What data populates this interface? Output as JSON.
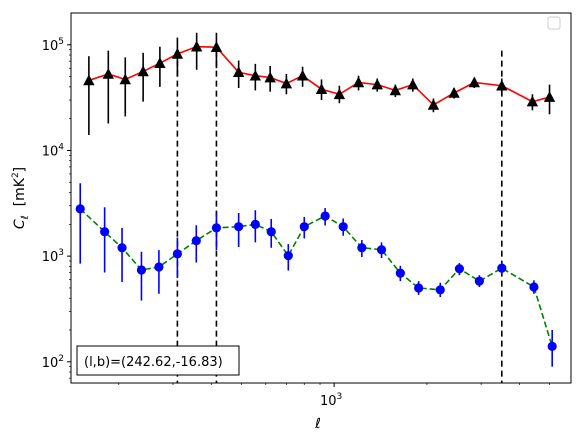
{
  "chart_data": {
    "type": "scatter",
    "xlabel": "ℓ",
    "ylabel_main": "C",
    "ylabel_sub": "ℓ",
    "ylabel_unit": "[mK",
    "ylabel_unit_sup": "2",
    "ylabel_unit_close": "]",
    "xscale": "log",
    "yscale": "log",
    "xlim": [
      140,
      5870
    ],
    "ylim": [
      63,
      200000
    ],
    "grid": false,
    "legend_location": "upper right",
    "annotation": "(l,b)=(242.62,-16.83)",
    "x_ticks": [
      {
        "value": 1000,
        "label_base": "10",
        "label_exp": "3"
      }
    ],
    "y_ticks": [
      {
        "value": 100,
        "label_base": "10",
        "label_exp": "2"
      },
      {
        "value": 1000,
        "label_base": "10",
        "label_exp": "3"
      },
      {
        "value": 10000,
        "label_base": "10",
        "label_exp": "4"
      },
      {
        "value": 100000,
        "label_base": "10",
        "label_exp": "5"
      }
    ],
    "vlines": [
      310,
      415,
      3500
    ],
    "series": [
      {
        "marker": "triangle",
        "marker_color": "#000000",
        "line_color": "#ff0000",
        "line_style": "solid",
        "points": [
          {
            "x": 160,
            "y": 46000,
            "lo": 14000,
            "hi": 78000
          },
          {
            "x": 185,
            "y": 53000,
            "lo": 18000,
            "hi": 88000
          },
          {
            "x": 210,
            "y": 47000,
            "lo": 21000,
            "hi": 76000
          },
          {
            "x": 240,
            "y": 56000,
            "lo": 29000,
            "hi": 84000
          },
          {
            "x": 272,
            "y": 67000,
            "lo": 40000,
            "hi": 96000
          },
          {
            "x": 310,
            "y": 82000,
            "lo": 50000,
            "hi": 117000
          },
          {
            "x": 358,
            "y": 96000,
            "lo": 58000,
            "hi": 130000
          },
          {
            "x": 415,
            "y": 95000,
            "lo": 60000,
            "hi": 130000
          },
          {
            "x": 490,
            "y": 55000,
            "lo": 39000,
            "hi": 71000
          },
          {
            "x": 555,
            "y": 51000,
            "lo": 37000,
            "hi": 66000
          },
          {
            "x": 620,
            "y": 49000,
            "lo": 36000,
            "hi": 63000
          },
          {
            "x": 700,
            "y": 43000,
            "lo": 34000,
            "hi": 53000
          },
          {
            "x": 790,
            "y": 51000,
            "lo": 40000,
            "hi": 62000
          },
          {
            "x": 910,
            "y": 38000,
            "lo": 30000,
            "hi": 47000
          },
          {
            "x": 1040,
            "y": 34000,
            "lo": 28000,
            "hi": 41000
          },
          {
            "x": 1200,
            "y": 44000,
            "lo": 37000,
            "hi": 51000
          },
          {
            "x": 1380,
            "y": 42000,
            "lo": 36000,
            "hi": 48000
          },
          {
            "x": 1580,
            "y": 37000,
            "lo": 32000,
            "hi": 42000
          },
          {
            "x": 1800,
            "y": 42000,
            "lo": 36000,
            "hi": 48000
          },
          {
            "x": 2100,
            "y": 27000,
            "lo": 23000,
            "hi": 31000
          },
          {
            "x": 2450,
            "y": 35000,
            "lo": 31000,
            "hi": 39000
          },
          {
            "x": 2850,
            "y": 44000,
            "lo": 39000,
            "hi": 49000
          },
          {
            "x": 3500,
            "y": 41000,
            "lo": 34000,
            "hi": 48000
          },
          {
            "x": 4400,
            "y": 29000,
            "lo": 24000,
            "hi": 34000
          },
          {
            "x": 5000,
            "y": 32000,
            "lo": 22000,
            "hi": 42000
          }
        ]
      },
      {
        "marker": "circle",
        "marker_color": "#0000ff",
        "line_color": "#008000",
        "line_style": "dashed",
        "points": [
          {
            "x": 150,
            "y": 2800,
            "lo": 850,
            "hi": 4900
          },
          {
            "x": 180,
            "y": 1700,
            "lo": 700,
            "hi": 2900
          },
          {
            "x": 205,
            "y": 1200,
            "lo": 570,
            "hi": 1850
          },
          {
            "x": 237,
            "y": 740,
            "lo": 380,
            "hi": 1100
          },
          {
            "x": 270,
            "y": 790,
            "lo": 440,
            "hi": 1140
          },
          {
            "x": 310,
            "y": 1050,
            "lo": 620,
            "hi": 1500
          },
          {
            "x": 357,
            "y": 1400,
            "lo": 870,
            "hi": 1960
          },
          {
            "x": 415,
            "y": 1850,
            "lo": 1140,
            "hi": 2570
          },
          {
            "x": 490,
            "y": 1900,
            "lo": 1220,
            "hi": 2560
          },
          {
            "x": 555,
            "y": 2000,
            "lo": 1350,
            "hi": 2720
          },
          {
            "x": 625,
            "y": 1700,
            "lo": 1200,
            "hi": 2250
          },
          {
            "x": 710,
            "y": 1010,
            "lo": 730,
            "hi": 1300
          },
          {
            "x": 800,
            "y": 1900,
            "lo": 1470,
            "hi": 2350
          },
          {
            "x": 935,
            "y": 2400,
            "lo": 1950,
            "hi": 2850
          },
          {
            "x": 1070,
            "y": 1900,
            "lo": 1560,
            "hi": 2270
          },
          {
            "x": 1230,
            "y": 1200,
            "lo": 980,
            "hi": 1420
          },
          {
            "x": 1425,
            "y": 1150,
            "lo": 960,
            "hi": 1350
          },
          {
            "x": 1640,
            "y": 690,
            "lo": 580,
            "hi": 810
          },
          {
            "x": 1880,
            "y": 500,
            "lo": 430,
            "hi": 580
          },
          {
            "x": 2210,
            "y": 480,
            "lo": 410,
            "hi": 560
          },
          {
            "x": 2550,
            "y": 760,
            "lo": 660,
            "hi": 860
          },
          {
            "x": 2960,
            "y": 580,
            "lo": 510,
            "hi": 660
          },
          {
            "x": 3500,
            "y": 770,
            "lo": 670,
            "hi": 880
          },
          {
            "x": 4450,
            "y": 510,
            "lo": 440,
            "hi": 590
          },
          {
            "x": 5100,
            "y": 140,
            "lo": 90,
            "hi": 200
          }
        ]
      }
    ]
  }
}
